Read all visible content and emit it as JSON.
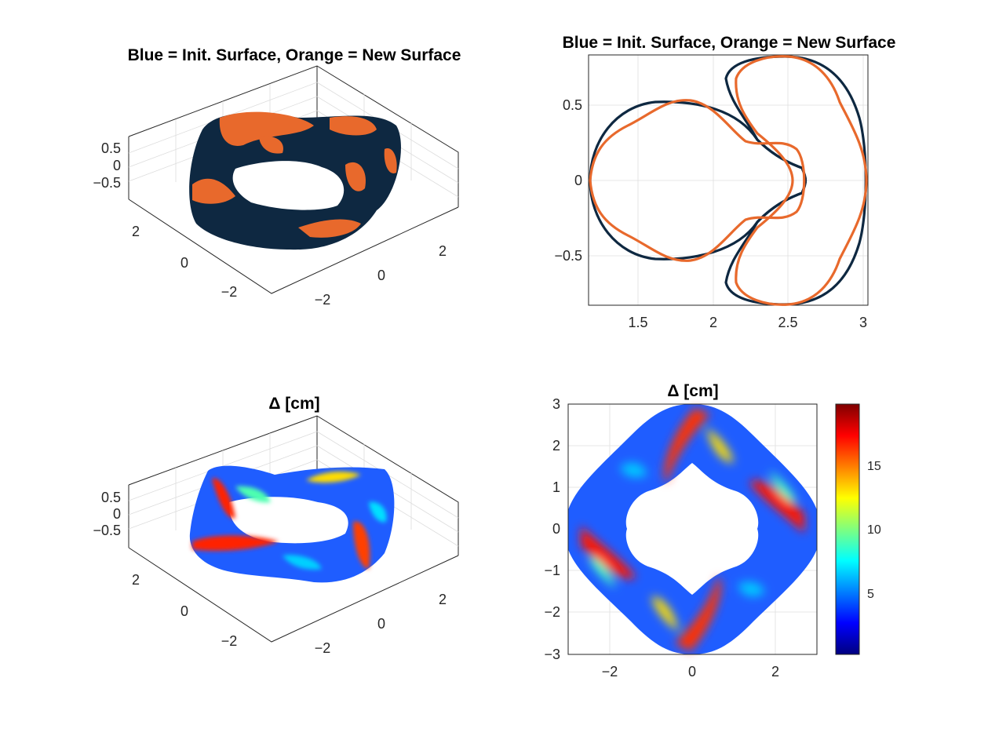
{
  "colors": {
    "init_surface": "#0e2841",
    "new_surface": "#e8692c",
    "jet": [
      "#00007f",
      "#0000ff",
      "#007fff",
      "#00ffff",
      "#7fff7f",
      "#ffff00",
      "#ff7f00",
      "#ff0000",
      "#7f0000"
    ]
  },
  "panels": {
    "top_left": {
      "title": "Blue = Init. Surface, Orange = New Surface",
      "z_ticks": [
        "0.5",
        "0",
        "−0.5"
      ],
      "y_ticks": [
        "2",
        "0",
        "−2"
      ],
      "x_ticks": [
        "−2",
        "0",
        "2"
      ]
    },
    "top_right": {
      "title": "Blue = Init. Surface, Orange = New Surface",
      "x_ticks": [
        "1.5",
        "2",
        "2.5",
        "3"
      ],
      "y_ticks": [
        "0.5",
        "0",
        "−0.5"
      ]
    },
    "bottom_left": {
      "title": "Δ  [cm]",
      "z_ticks": [
        "0.5",
        "0",
        "−0.5"
      ],
      "y_ticks": [
        "2",
        "0",
        "−2"
      ],
      "x_ticks": [
        "−2",
        "0",
        "2"
      ]
    },
    "bottom_right": {
      "title": "Δ  [cm]",
      "x_ticks": [
        "−2",
        "0",
        "2"
      ],
      "y_ticks": [
        "3",
        "2",
        "1",
        "0",
        "−1",
        "−2",
        "−3"
      ],
      "colorbar_ticks": [
        "15",
        "10",
        "5"
      ]
    }
  },
  "chart_data": [
    {
      "type": "surface3d",
      "title": "Blue = Init. Surface, Orange = New Surface",
      "series": [
        "Init. Surface",
        "New Surface"
      ],
      "xlim": [
        -3,
        3
      ],
      "ylim": [
        -3,
        3
      ],
      "zlim": [
        -0.8,
        0.8
      ],
      "zticks": [
        -0.5,
        0,
        0.5
      ],
      "yticks": [
        -2,
        0,
        2
      ],
      "xticks": [
        -2,
        0,
        2
      ],
      "grid": true
    },
    {
      "type": "line",
      "title": "Blue = Init. Surface, Orange = New Surface",
      "xlim": [
        1.17,
        3.02
      ],
      "ylim": [
        -0.83,
        0.83
      ],
      "xticks": [
        1.5,
        2,
        2.5,
        3
      ],
      "yticks": [
        -0.5,
        0,
        0.5
      ],
      "grid": true,
      "series": [
        {
          "color": "init_surface",
          "shape": "circle",
          "center": [
            1.72,
            0
          ],
          "radius_x": 0.54,
          "radius_y": 0.5
        },
        {
          "color": "init_surface",
          "shape": "crescent",
          "x": [
            2.13,
            2.3,
            2.5,
            2.8,
            2.96,
            3.0,
            2.96,
            2.8,
            2.5,
            2.3,
            2.13
          ],
          "y": [
            0.6,
            0.78,
            0.82,
            0.66,
            0.4,
            0,
            -0.4,
            -0.66,
            -0.82,
            -0.78,
            -0.6
          ]
        },
        {
          "color": "new_surface",
          "shape": "lobed",
          "x": [
            1.17,
            1.3,
            1.55,
            1.85,
            2.1,
            2.4,
            2.6,
            2.4,
            2.1,
            1.85,
            1.55,
            1.3,
            1.17
          ],
          "y": [
            0,
            0.27,
            0.43,
            0.53,
            0.3,
            0.26,
            0,
            -0.26,
            -0.3,
            -0.53,
            -0.43,
            -0.27,
            0
          ]
        },
        {
          "color": "new_surface",
          "shape": "lobed",
          "x": [
            2.2,
            2.35,
            2.6,
            2.85,
            3.0,
            2.85,
            2.6,
            2.35,
            2.2
          ],
          "y": [
            0.65,
            0.82,
            0.76,
            0.45,
            0,
            -0.45,
            -0.76,
            -0.82,
            -0.65
          ]
        }
      ]
    },
    {
      "type": "surface3d",
      "title": "Δ  [cm]",
      "colormap": "jet",
      "clim": [
        0,
        20
      ],
      "xlim": [
        -3,
        3
      ],
      "ylim": [
        -3,
        3
      ],
      "zlim": [
        -0.8,
        0.8
      ],
      "zticks": [
        -0.5,
        0,
        0.5
      ],
      "yticks": [
        -2,
        0,
        2
      ],
      "xticks": [
        -2,
        0,
        2
      ],
      "grid": true
    },
    {
      "type": "heatmap",
      "title": "Δ  [cm]",
      "colormap": "jet",
      "clim": [
        0,
        20
      ],
      "colorbar_ticks": [
        5,
        10,
        15
      ],
      "xlim": [
        -3,
        3
      ],
      "ylim": [
        -3,
        3
      ],
      "xticks": [
        -2,
        0,
        2
      ],
      "yticks": [
        -3,
        -2,
        -1,
        0,
        1,
        2,
        3
      ],
      "grid": true,
      "hotspots": [
        {
          "x": -1.9,
          "y": -0.6,
          "value": 19
        },
        {
          "x": 1.9,
          "y": 0.6,
          "value": 19
        },
        {
          "x": 0.6,
          "y": -2.0,
          "value": 18
        },
        {
          "x": -0.6,
          "y": 2.0,
          "value": 18
        }
      ]
    }
  ]
}
